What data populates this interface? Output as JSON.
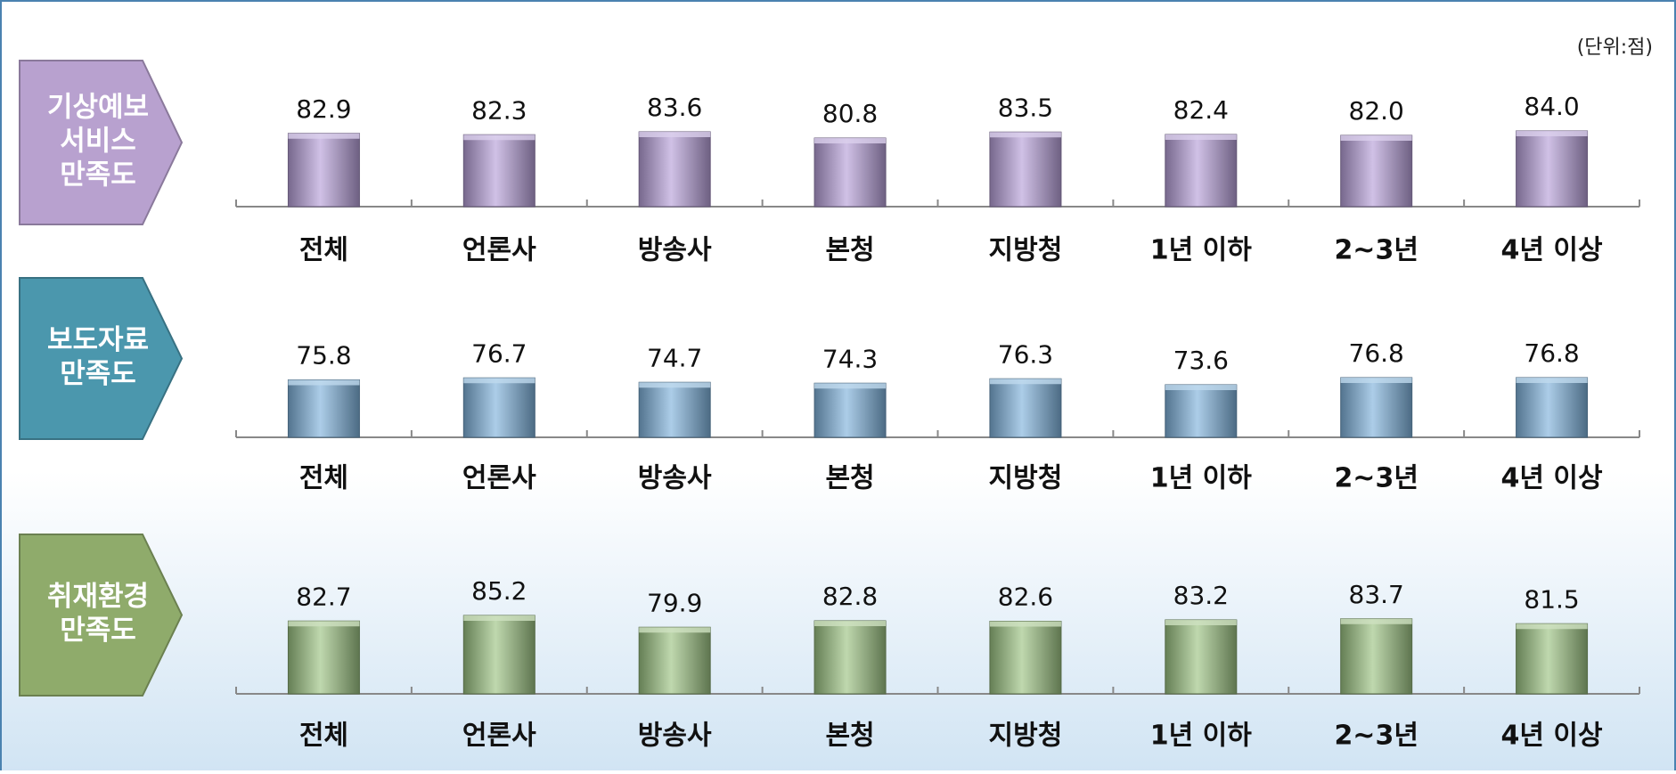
{
  "chart_data": [
    {
      "type": "bar",
      "annotation": "(단위:점)",
      "title": [
        "기상예보",
        "서비스",
        "만족도"
      ],
      "categories": [
        "전체",
        "언론사",
        "방송사",
        "본청",
        "지방청",
        "1년 이하",
        "2~3년",
        "4년 이상"
      ],
      "values": [
        82.9,
        82.3,
        83.6,
        80.8,
        83.5,
        82.4,
        82.0,
        84.0
      ],
      "value_labels": [
        "82.9",
        "82.3",
        "83.6",
        "80.8",
        "83.5",
        "82.4",
        "82.0",
        "84.0"
      ],
      "color": "#b7a0d9",
      "label_color": "#b8a1cf",
      "ylim": [
        50,
        90
      ]
    },
    {
      "type": "bar",
      "title": [
        "보도자료",
        "만족도"
      ],
      "categories": [
        "전체",
        "언론사",
        "방송사",
        "본청",
        "지방청",
        "1년 이하",
        "2~3년",
        "4년 이상"
      ],
      "values": [
        75.8,
        76.7,
        74.7,
        74.3,
        76.3,
        73.6,
        76.8,
        76.8
      ],
      "value_labels": [
        "75.8",
        "76.7",
        "74.7",
        "74.3",
        "76.3",
        "73.6",
        "76.8",
        "76.8"
      ],
      "color": "#7fb2dc",
      "label_color": "#4b97ad",
      "ylim": [
        50,
        90
      ]
    },
    {
      "type": "bar",
      "title": [
        "취재환경",
        "만족도"
      ],
      "categories": [
        "전체",
        "언론사",
        "방송사",
        "본청",
        "지방청",
        "1년 이하",
        "2~3년",
        "4년 이상"
      ],
      "values": [
        82.7,
        85.2,
        79.9,
        82.8,
        82.6,
        83.2,
        83.7,
        81.5
      ],
      "value_labels": [
        "82.7",
        "85.2",
        "79.9",
        "82.8",
        "82.6",
        "83.2",
        "83.7",
        "81.5"
      ],
      "color": "#9cc383",
      "label_color": "#8fab6b",
      "ylim": [
        50,
        90
      ]
    }
  ]
}
